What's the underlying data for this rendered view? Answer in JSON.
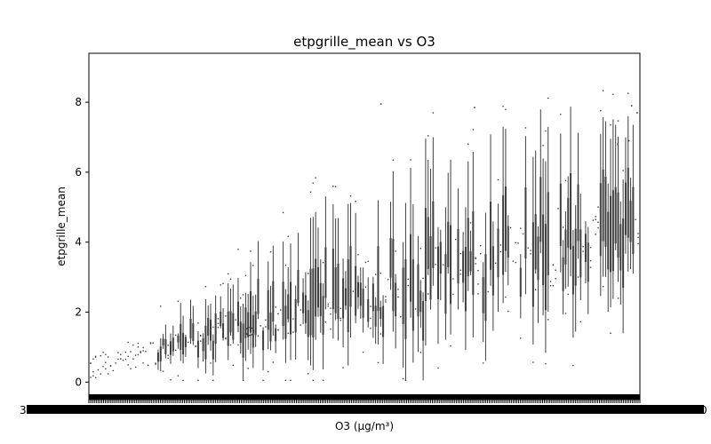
{
  "chart_data": {
    "type": "box",
    "title": "etpgrille_mean vs O3",
    "xlabel": "O3 (µg/m³)",
    "ylabel": "etpgrille_mean",
    "ylim": [
      -0.5,
      9.4
    ],
    "yticks": [
      0,
      2,
      4,
      6,
      8
    ],
    "x_tick_labels_note": "x tick labels are densely overlapped and illegible (one per O3 value)",
    "x_tick_first_visible": "3",
    "x_tick_last_visible": "0",
    "grid": false,
    "legend": "none",
    "box_color": "#3f3f3f",
    "series_trend": {
      "description": "approximate per-category distribution trend from left (low O3) to right (high O3)",
      "median_start": 0.4,
      "median_end": 4.5,
      "whisker_high_start": 0.8,
      "whisker_high_end": 7.9,
      "whisker_low_start": 0.1,
      "whisker_low_end": 2.5
    },
    "highlighted_outlier": {
      "y": 1.45
    }
  }
}
